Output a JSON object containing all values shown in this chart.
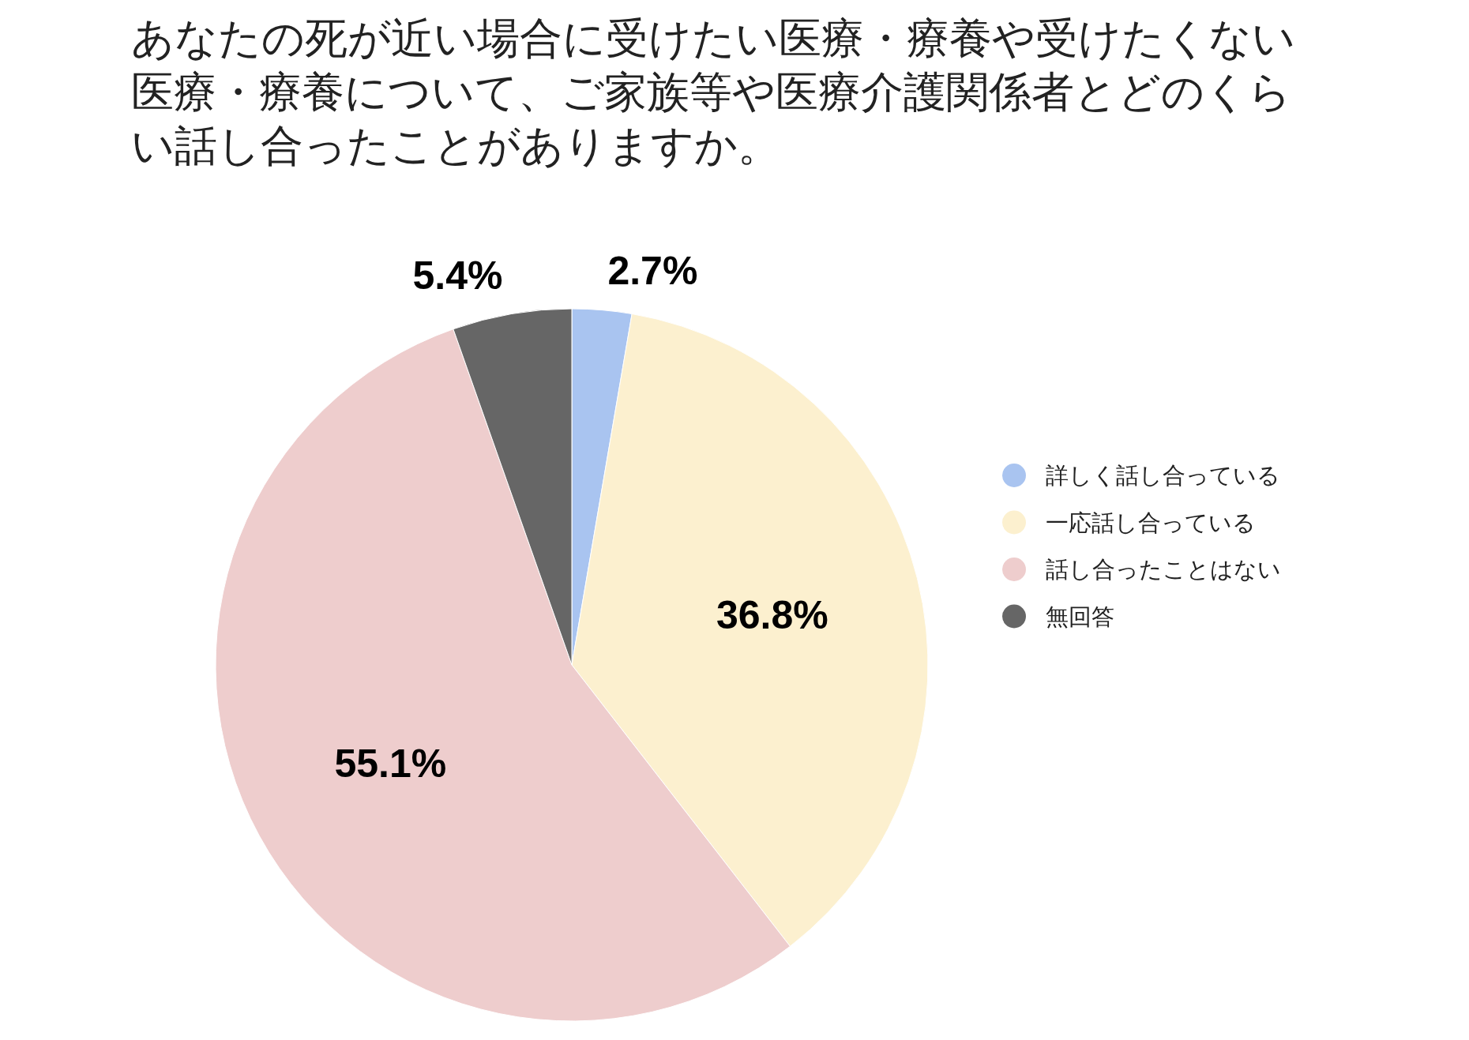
{
  "chart_data": {
    "type": "pie",
    "title": "あなたの死が近い場合に受けたい医療・療養や受けたくない医療・療養について、ご家族等や医療介護関係者とどのくらい話し合ったことがありますか。",
    "categories": [
      "詳しく話し合っている",
      "一応話し合っている",
      "話し合ったことはない",
      "無回答"
    ],
    "values": [
      2.7,
      36.8,
      55.1,
      5.4
    ],
    "colors": [
      "#a9c4f0",
      "#fcf0cf",
      "#eecdcd",
      "#666666"
    ],
    "value_labels": [
      "2.7%",
      "36.8%",
      "55.1%",
      "5.4%"
    ],
    "legend": "right"
  }
}
